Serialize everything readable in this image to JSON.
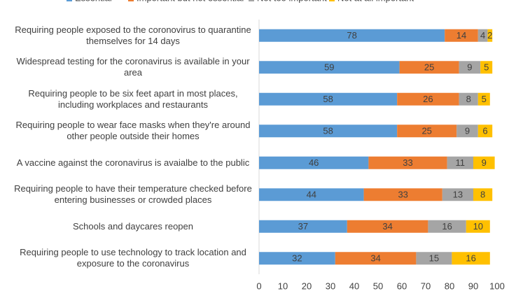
{
  "chart_data": {
    "type": "stacked_barh",
    "categories": [
      "Requiring people exposed to the coronovirus to quarantine themselves for 14 days",
      "Widespread testing for the coronavirus is available in your area",
      "Requiring people to be six feet apart in most places, including workplaces and restaurants",
      "Requiring people to wear face masks when they're around other people outside their homes",
      "A vaccine against the coronavirus is avaialbe to the public",
      "Requiring people to have their temperature checked before entering businesses or crowded places",
      "Schools and daycares reopen",
      "Requiring people to use technology to track location and exposure to the coronavirus"
    ],
    "series": [
      {
        "name": "Essential",
        "color": "#5b9bd5",
        "values": [
          78,
          59,
          58,
          58,
          46,
          44,
          37,
          32
        ]
      },
      {
        "name": "Important but not essential",
        "color": "#ed7d31",
        "values": [
          14,
          25,
          26,
          25,
          33,
          33,
          34,
          34
        ]
      },
      {
        "name": "Not too important",
        "color": "#a5a5a5",
        "values": [
          4,
          9,
          8,
          9,
          11,
          13,
          16,
          15
        ]
      },
      {
        "name": "Not at all important",
        "color": "#ffc000",
        "values": [
          2,
          5,
          5,
          6,
          9,
          8,
          10,
          16
        ]
      }
    ],
    "xlim": [
      0,
      100
    ],
    "xticks": [
      0,
      10,
      20,
      30,
      40,
      50,
      60,
      70,
      80,
      90,
      100
    ],
    "legend": "top"
  }
}
